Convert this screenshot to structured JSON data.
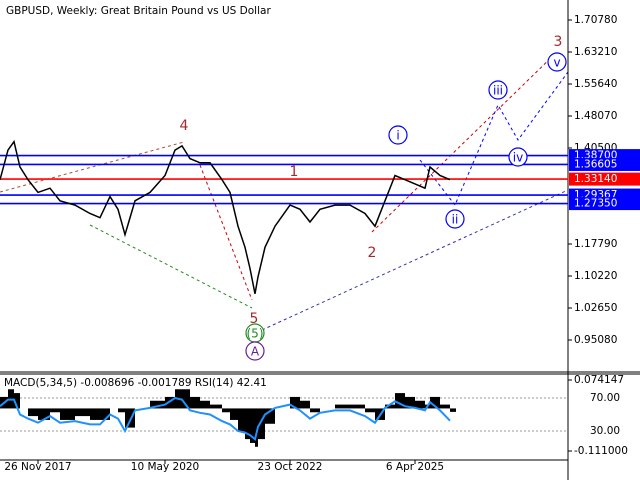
{
  "chart_data": [
    {
      "type": "line",
      "title": "GBPUSD, Weekly:  Great Britain Pound vs US Dollar",
      "x": [
        0,
        8,
        14,
        20,
        28,
        38,
        50,
        60,
        75,
        90,
        100,
        110,
        118,
        125,
        135,
        150,
        165,
        175,
        182,
        190,
        200,
        210,
        222,
        230,
        238,
        245,
        250,
        255,
        258,
        265,
        275,
        290,
        300,
        310,
        320,
        335,
        350,
        365,
        375,
        385,
        395,
        405,
        415,
        425,
        430,
        440,
        450
      ],
      "series": [
        {
          "name": "GBPUSD",
          "color": "#000000",
          "values": [
            1.33,
            1.4,
            1.42,
            1.36,
            1.33,
            1.3,
            1.31,
            1.28,
            1.27,
            1.25,
            1.24,
            1.29,
            1.26,
            1.2,
            1.28,
            1.3,
            1.34,
            1.4,
            1.41,
            1.38,
            1.37,
            1.37,
            1.33,
            1.3,
            1.22,
            1.17,
            1.12,
            1.06,
            1.1,
            1.17,
            1.22,
            1.27,
            1.26,
            1.23,
            1.26,
            1.27,
            1.27,
            1.25,
            1.22,
            1.28,
            1.34,
            1.33,
            1.32,
            1.31,
            1.36,
            1.34,
            1.33
          ]
        }
      ],
      "xlim": [
        0,
        568
      ],
      "xticks": [
        {
          "value": 38,
          "label": "26 Nov 2017"
        },
        {
          "value": 165,
          "label": "10 May 2020"
        },
        {
          "value": 290,
          "label": "23 Oct 2022"
        },
        {
          "value": 415,
          "label": "6 Apr 2025"
        }
      ],
      "ylim": [
        0.8751,
        1.7551
      ],
      "yticks": [
        {
          "value": 1.7078,
          "label": "1.70780"
        },
        {
          "value": 1.6321,
          "label": "1.63210"
        },
        {
          "value": 1.5564,
          "label": "1.55640"
        },
        {
          "value": 1.4807,
          "label": "1.48070"
        },
        {
          "value": 1.405,
          "label": "1.40500"
        },
        {
          "value": 1.1779,
          "label": "1.17790"
        },
        {
          "value": 1.1022,
          "label": "1.10220"
        },
        {
          "value": 1.0265,
          "label": "1.02650"
        },
        {
          "value": 0.9508,
          "label": "0.95080"
        }
      ],
      "levels": [
        {
          "value": 1.387,
          "label": "1.38700",
          "color": "#0000ff"
        },
        {
          "value": 1.36605,
          "label": "1.36605",
          "color": "#0000ff"
        },
        {
          "value": 1.3314,
          "label": "1.33140",
          "color": "#ff0000"
        },
        {
          "value": 1.29367,
          "label": "1.29367",
          "color": "#0000ff"
        },
        {
          "value": 1.2735,
          "label": "1.27350",
          "color": "#0000ff"
        }
      ],
      "annotations": [
        "4",
        "1",
        "2",
        "3",
        "5",
        "(5)",
        "A",
        "i",
        "ii",
        "iii",
        "iv",
        "v"
      ]
    },
    {
      "type": "bar",
      "title": "MACD(5,34,5) -0.008696 -0.001789 RSI(14) 42.41",
      "x": [
        0,
        8,
        14,
        20,
        28,
        38,
        50,
        60,
        75,
        90,
        100,
        110,
        118,
        125,
        135,
        150,
        165,
        175,
        182,
        190,
        200,
        210,
        222,
        230,
        238,
        245,
        250,
        255,
        258,
        265,
        275,
        290,
        300,
        310,
        320,
        335,
        350,
        365,
        375,
        385,
        395,
        405,
        415,
        425,
        430,
        440,
        450
      ],
      "series": [
        {
          "name": "MACD",
          "color": "#000000",
          "values": [
            0.03,
            0.05,
            0.04,
            0.0,
            -0.02,
            -0.03,
            -0.01,
            -0.03,
            -0.02,
            -0.03,
            -0.03,
            0.0,
            -0.01,
            -0.05,
            0.0,
            0.02,
            0.03,
            0.05,
            0.05,
            0.03,
            0.02,
            0.01,
            -0.01,
            -0.03,
            -0.06,
            -0.08,
            -0.09,
            -0.1,
            -0.08,
            -0.04,
            0.0,
            0.03,
            0.02,
            -0.01,
            0.0,
            0.01,
            0.01,
            -0.01,
            -0.03,
            0.01,
            0.04,
            0.03,
            0.02,
            0.01,
            0.03,
            0.01,
            -0.009
          ]
        },
        {
          "name": "RSI",
          "color": "#1e90ff",
          "axis": "y2",
          "values": [
            60,
            68,
            68,
            50,
            45,
            40,
            48,
            40,
            42,
            38,
            38,
            50,
            45,
            30,
            55,
            58,
            62,
            70,
            68,
            55,
            52,
            50,
            42,
            38,
            30,
            28,
            25,
            20,
            35,
            50,
            58,
            62,
            55,
            45,
            52,
            55,
            55,
            48,
            40,
            58,
            66,
            60,
            58,
            55,
            65,
            55,
            42.41
          ]
        }
      ],
      "xlim": [
        0,
        568
      ],
      "ylim": [
        -0.1345,
        0.0898
      ],
      "yticks": [
        0.074147,
        {
          "value": -0.111,
          "label": "-0.111000"
        }
      ],
      "y2lim": [
        -5.2,
        99.1
      ],
      "y2ticks": [
        {
          "value": 70,
          "label": "70.00"
        },
        {
          "value": 30,
          "label": "30.00"
        }
      ]
    }
  ]
}
